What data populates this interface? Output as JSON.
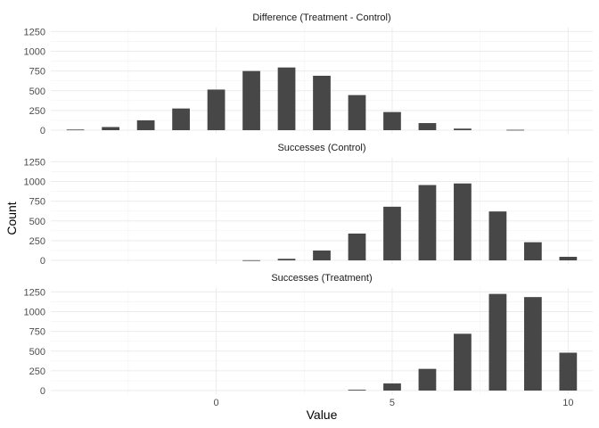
{
  "chart_data": {
    "type": "bar",
    "xlabel": "Value",
    "ylabel": "Count",
    "xlim": [
      -4.7,
      10.7
    ],
    "ylim": [
      0,
      1300
    ],
    "x_ticks": [
      0,
      5,
      10
    ],
    "y_ticks": [
      0,
      250,
      500,
      750,
      1000,
      1250
    ],
    "grid": true,
    "bar_color": "#474747",
    "facets": [
      {
        "title": "Difference (Treatment - Control)",
        "x": [
          -4,
          -3,
          -2,
          -1,
          0,
          1,
          2,
          3,
          4,
          5,
          6,
          7,
          8.5
        ],
        "values": [
          8,
          40,
          125,
          275,
          515,
          750,
          795,
          690,
          445,
          230,
          90,
          20,
          5
        ]
      },
      {
        "title": "Successes (Control)",
        "x": [
          1,
          2,
          3,
          4,
          5,
          6,
          7,
          8,
          9,
          10
        ],
        "values": [
          2,
          20,
          125,
          340,
          680,
          955,
          975,
          620,
          230,
          45
        ]
      },
      {
        "title": "Successes (Treatment)",
        "x": [
          4,
          5,
          6,
          7,
          8,
          9,
          10
        ],
        "values": [
          10,
          90,
          275,
          720,
          1225,
          1185,
          480
        ]
      }
    ]
  }
}
